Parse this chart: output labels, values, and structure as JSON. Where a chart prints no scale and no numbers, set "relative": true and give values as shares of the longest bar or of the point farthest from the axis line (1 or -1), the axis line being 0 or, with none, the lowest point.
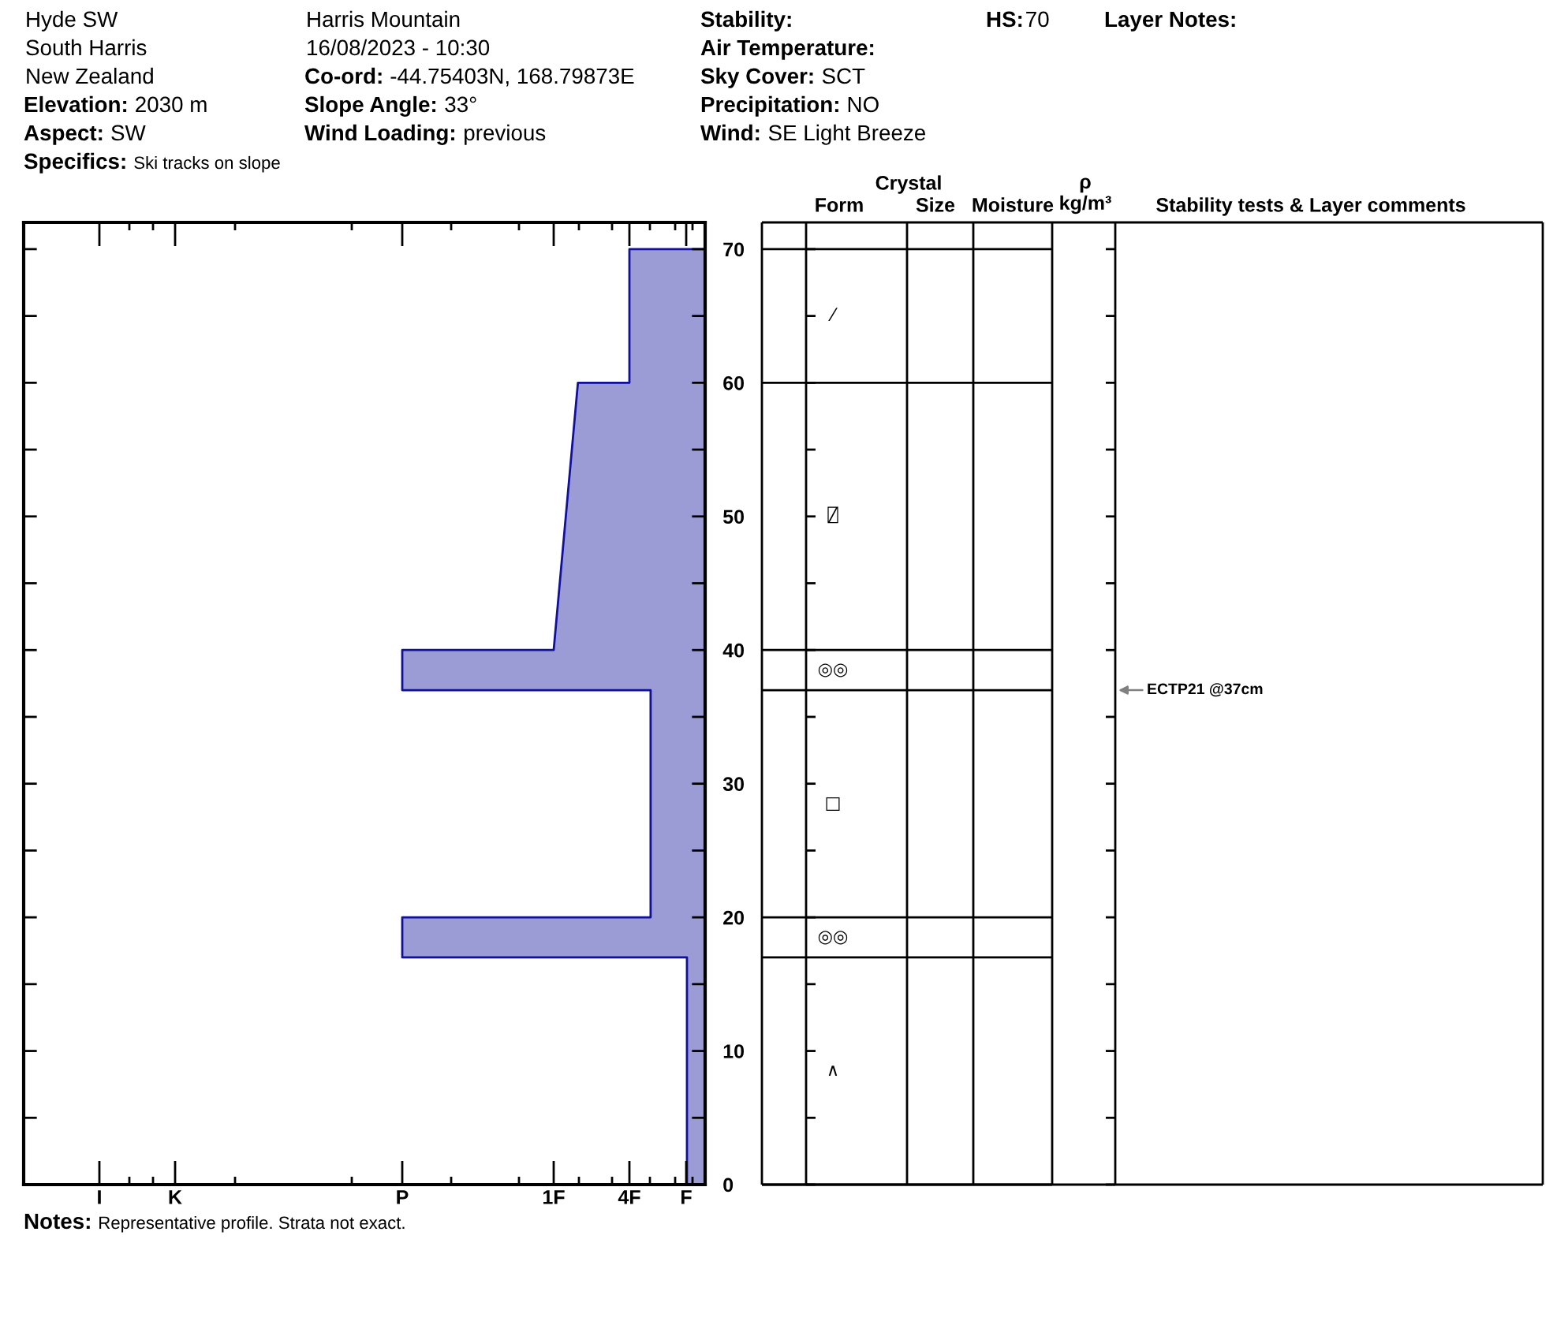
{
  "chart_data": {
    "type": "area",
    "orientation": "horizontal",
    "relative": true,
    "x": [
      0,
      17,
      17,
      20,
      20,
      37,
      37,
      40,
      40,
      60,
      60,
      70
    ],
    "values": [
      -0.06,
      -0.06,
      -1,
      -1,
      -0.18,
      -0.18,
      -1,
      -1,
      -0.5,
      -0.42,
      -0.25,
      -0.25
    ],
    "color": "#9b9bd6",
    "ylim": [
      0,
      72
    ],
    "yticks": [
      0,
      {
        "value": 5,
        "label": null
      },
      10,
      {
        "value": 15,
        "label": null
      },
      20,
      {
        "value": 25,
        "label": null
      },
      30,
      {
        "value": 35,
        "label": null
      },
      40,
      {
        "value": 45,
        "label": null
      },
      50,
      {
        "value": 55,
        "label": null
      },
      60,
      {
        "value": 65,
        "label": null
      },
      70
    ],
    "tick_labels": "y",
    "annotations": [
      "Hyde SW",
      "Harris Mountain",
      "Stability:",
      "HS:70",
      "Layer Notes:",
      "South Harris",
      "16/08/2023 - 10:30",
      "Air Temperature:",
      "New Zealand",
      "Co-ord: -44.75403N, 168.79873E",
      "Sky Cover: SCT",
      "Elevation: 2030 m",
      "Slope Angle: 33°",
      "Precipitation: NO",
      "Aspect: SW",
      "Wind Loading: previous",
      "Wind: SE Light Breeze",
      "Specifics: Ski tracks on slope",
      "Crystal",
      "Form",
      "Size",
      "Moisture",
      "ρ\nkg/m³",
      "Stability tests & Layer comments",
      "I",
      "K",
      "P",
      "1F",
      "4F",
      "F",
      "Notes: Representative profile. Strata not exact.",
      "⁄",
      "⍁",
      "◎◎",
      "□",
      "◎◎",
      "∧",
      "ECTP21 @37cm"
    ]
  }
}
